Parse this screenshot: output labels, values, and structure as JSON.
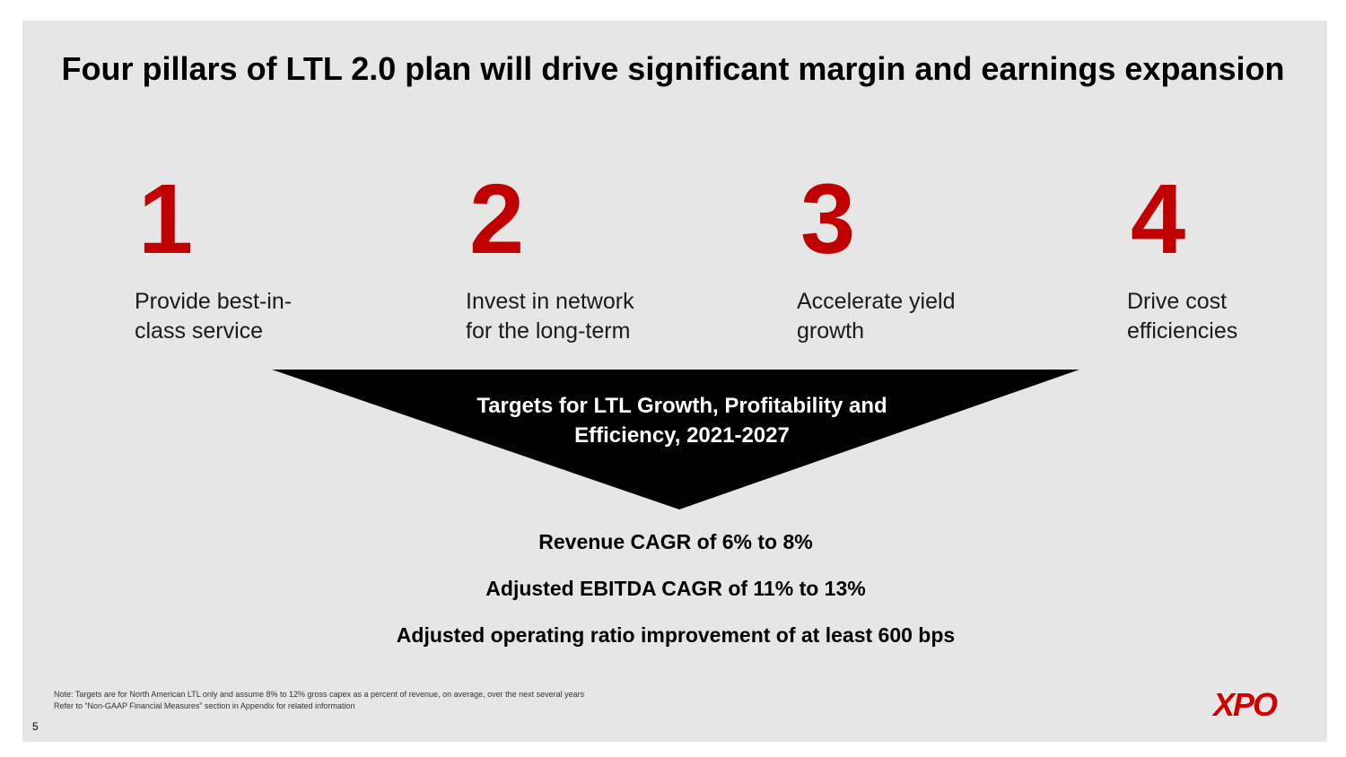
{
  "title": "Four pillars of LTL 2.0 plan will drive significant margin and earnings expansion",
  "pillars": [
    {
      "number": "1",
      "description": "Provide best-in-\nclass service"
    },
    {
      "number": "2",
      "description": "Invest in network\nfor the long-term"
    },
    {
      "number": "3",
      "description": "Accelerate yield\ngrowth"
    },
    {
      "number": "4",
      "description": "Drive cost\nefficiencies"
    }
  ],
  "funnel": {
    "label": "Targets for LTL Growth, Profitability and\nEfficiency, 2021-2027"
  },
  "targets": [
    "Revenue CAGR of 6% to 8%",
    "Adjusted EBITDA CAGR of 11% to 13%",
    "Adjusted operating ratio improvement of at least 600 bps"
  ],
  "notes": [
    "Note: Targets are for North American LTL only and assume 8% to 12% gross capex as a percent of revenue, on average, over the next several years",
    "Refer to “Non-GAAP Financial Measures” section in Appendix for related information"
  ],
  "page_number": "5",
  "logo": "XPO",
  "colors": {
    "accent": "#c00000",
    "background": "#e6e6e6",
    "funnel": "#000000"
  }
}
